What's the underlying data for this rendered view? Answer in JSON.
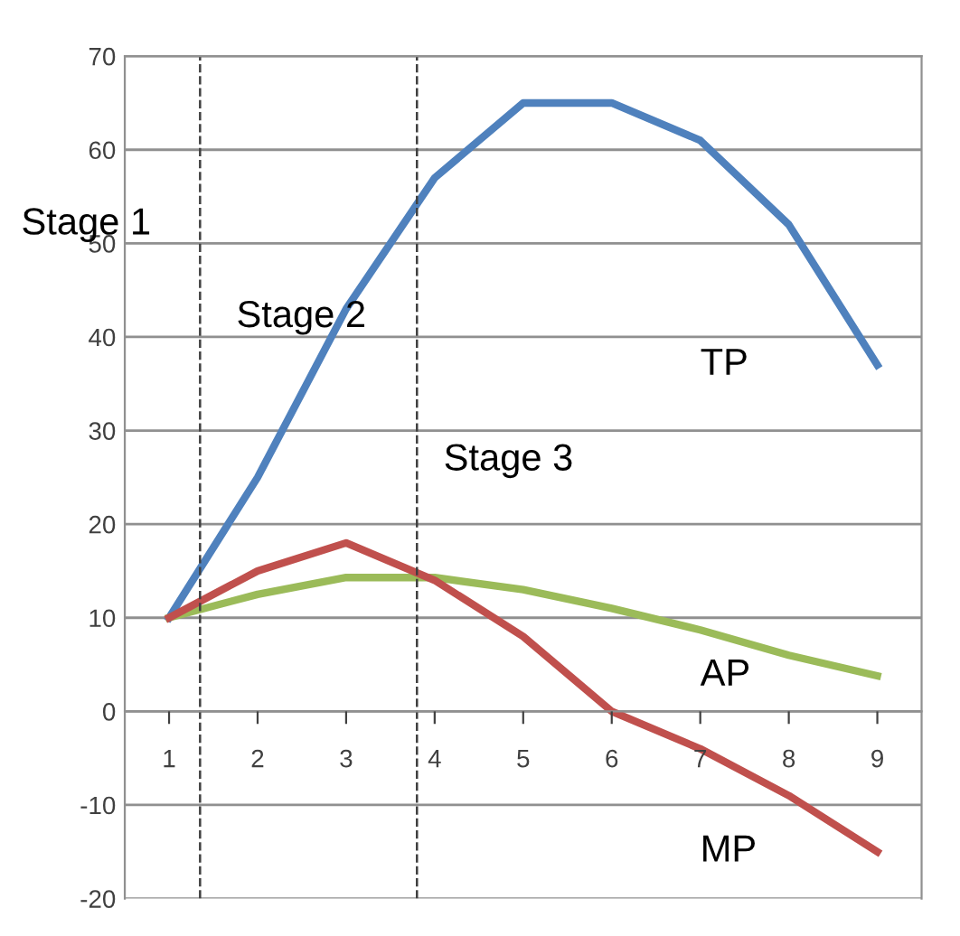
{
  "chart_data": {
    "type": "line",
    "x": [
      1,
      2,
      3,
      4,
      5,
      6,
      7,
      8,
      9
    ],
    "xlim": [
      0.5,
      9.5
    ],
    "xticks": [
      1,
      2,
      3,
      4,
      5,
      6,
      7,
      8,
      9
    ],
    "ylim": [
      -20,
      70
    ],
    "yticks": [
      -20,
      -10,
      0,
      10,
      20,
      30,
      40,
      50,
      60,
      70
    ],
    "grid": "y",
    "marker": "none",
    "line_style": "solid",
    "series": [
      {
        "name": "TP",
        "color": "#4f81bd",
        "values": [
          10,
          25,
          43,
          57,
          65,
          65,
          61,
          52,
          37
        ]
      },
      {
        "name": "AP",
        "color": "#9bbb59",
        "values": [
          10,
          12.5,
          14.3,
          14.3,
          13,
          11,
          8.7,
          6,
          3.8
        ]
      },
      {
        "name": "MP",
        "color": "#c0504d",
        "values": [
          10,
          15,
          18,
          14,
          8,
          0,
          -4,
          -9,
          -15
        ]
      }
    ],
    "ref_lines": [
      {
        "axis": "x",
        "value": 1.35,
        "line_style": "dashed",
        "color": "#404040"
      },
      {
        "axis": "x",
        "value": 3.8,
        "line_style": "dashed",
        "color": "#404040"
      }
    ],
    "annotations": [
      "Stage 1",
      "Stage 2",
      "Stage 3"
    ]
  }
}
